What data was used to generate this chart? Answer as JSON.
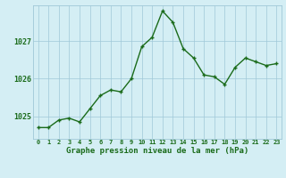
{
  "hours": [
    0,
    1,
    2,
    3,
    4,
    5,
    6,
    7,
    8,
    9,
    10,
    11,
    12,
    13,
    14,
    15,
    16,
    17,
    18,
    19,
    20,
    21,
    22,
    23
  ],
  "pressure": [
    1024.7,
    1024.7,
    1024.9,
    1024.95,
    1024.85,
    1025.2,
    1025.55,
    1025.7,
    1025.65,
    1026.0,
    1026.85,
    1027.1,
    1027.8,
    1027.5,
    1026.8,
    1026.55,
    1026.1,
    1026.05,
    1025.85,
    1026.3,
    1026.55,
    1026.45,
    1026.35,
    1026.4
  ],
  "line_color": "#1a6b1a",
  "marker_color": "#1a6b1a",
  "bg_color": "#d4eef4",
  "grid_color": "#a0c8d8",
  "xlabel": "Graphe pression niveau de la mer (hPa)",
  "xlabel_color": "#1a6b1a",
  "yticks": [
    1025,
    1026,
    1027
  ],
  "ylim": [
    1024.4,
    1027.95
  ],
  "xlim": [
    -0.5,
    23.5
  ],
  "tick_fontsize": 5.0,
  "ytick_fontsize": 6.0,
  "xlabel_fontsize": 6.5,
  "marker_size": 2.5,
  "linewidth": 1.0
}
